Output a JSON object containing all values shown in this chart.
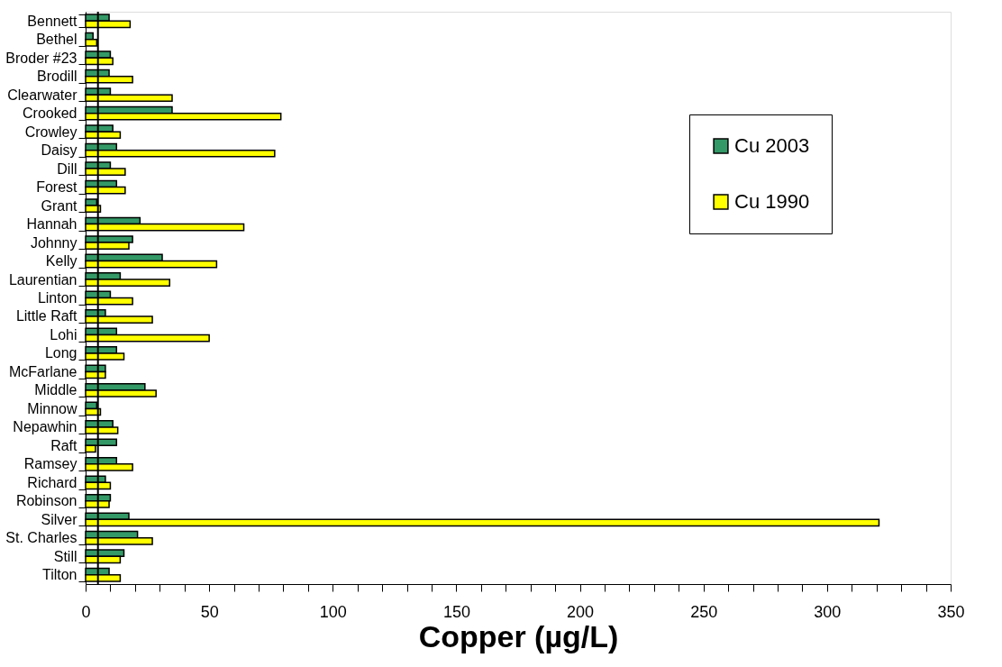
{
  "chart_data": {
    "type": "bar",
    "orientation": "horizontal",
    "xlabel": "Copper (µg/L)",
    "categories": [
      "Bennett",
      "Bethel",
      "Broder #23",
      "Brodill",
      "Clearwater",
      "Crooked",
      "Crowley",
      "Daisy",
      "Dill",
      "Forest",
      "Grant",
      "Hannah",
      "Johnny",
      "Kelly",
      "Laurentian",
      "Linton",
      "Little Raft",
      "Lohi",
      "Long",
      "McFarlane",
      "Middle",
      "Minnow",
      "Nepawhin",
      "Raft",
      "Ramsey",
      "Richard",
      "Robinson",
      "Silver",
      "St. Charles",
      "Still",
      "Tilton"
    ],
    "series": [
      {
        "name": "Cu 2003",
        "color": "#339966",
        "values": [
          9.5,
          3,
          10,
          9.5,
          10,
          35,
          11,
          12.5,
          10,
          12.5,
          4.5,
          22,
          19,
          31,
          14,
          10,
          8,
          12.5,
          12.5,
          8,
          24,
          4.5,
          11,
          12.5,
          12.5,
          8,
          10,
          17.5,
          21,
          15.5,
          9.5
        ]
      },
      {
        "name": "Cu 1990",
        "color": "#ffff00",
        "values": [
          18,
          4.5,
          11,
          19,
          35,
          79,
          14,
          76.5,
          16,
          16,
          6,
          64,
          17.5,
          53,
          34,
          19,
          27,
          50,
          15.5,
          8,
          28.5,
          6,
          13,
          4,
          19,
          10,
          9.5,
          321,
          27,
          14,
          14
        ]
      }
    ],
    "xlim": [
      0,
      350
    ],
    "xticks": [
      0,
      {
        "value": 10,
        "label": null
      },
      {
        "value": 20,
        "label": null
      },
      {
        "value": 30,
        "label": null
      },
      {
        "value": 40,
        "label": null
      },
      50,
      {
        "value": 60,
        "label": null
      },
      {
        "value": 70,
        "label": null
      },
      {
        "value": 80,
        "label": null
      },
      {
        "value": 90,
        "label": null
      },
      100,
      {
        "value": 110,
        "label": null
      },
      {
        "value": 120,
        "label": null
      },
      {
        "value": 130,
        "label": null
      },
      {
        "value": 140,
        "label": null
      },
      150,
      {
        "value": 160,
        "label": null
      },
      {
        "value": 170,
        "label": null
      },
      {
        "value": 180,
        "label": null
      },
      {
        "value": 190,
        "label": null
      },
      200,
      {
        "value": 210,
        "label": null
      },
      {
        "value": 220,
        "label": null
      },
      {
        "value": 230,
        "label": null
      },
      {
        "value": 240,
        "label": null
      },
      250,
      {
        "value": 260,
        "label": null
      },
      {
        "value": 270,
        "label": null
      },
      {
        "value": 280,
        "label": null
      },
      {
        "value": 290,
        "label": null
      },
      300,
      {
        "value": 310,
        "label": null
      },
      {
        "value": 320,
        "label": null
      },
      {
        "value": 330,
        "label": null
      },
      {
        "value": 340,
        "label": null
      },
      350
    ],
    "ref_lines": [
      {
        "axis": "x",
        "value": 5,
        "color": "#000000"
      }
    ],
    "grid": false,
    "legend": "top right"
  }
}
